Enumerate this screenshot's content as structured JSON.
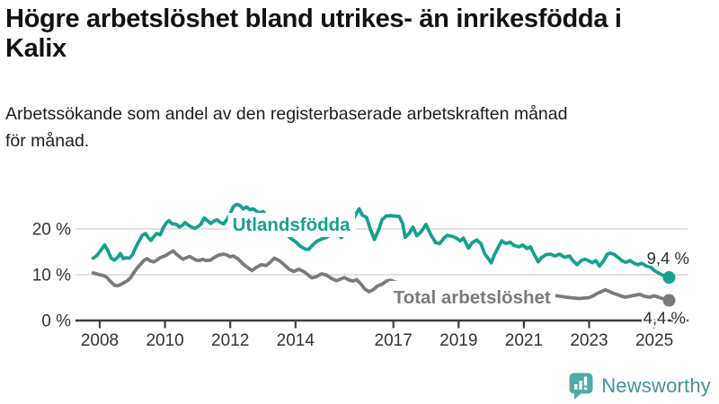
{
  "header": {
    "title_line1": "Högre arbetslöshet bland utrikes- än inrikesfödda i",
    "title_line2": "Kalix",
    "subtitle_line1": "Arbetssökande som andel av den registerbaserade arbetskraften månad",
    "subtitle_line2": "för månad."
  },
  "footer": {
    "brand": "Newsworthy",
    "logo_icon": "speech-bubble-bar-chart-icon",
    "logo_color": "#4FAAA5",
    "brand_color": "#42929C"
  },
  "chart_data": {
    "type": "line",
    "title": "Högre arbetslöshet bland utrikes- än inrikesfödda i Kalix",
    "subtitle": "Arbetssökande som andel av den registerbaserade arbetskraften månad för månad.",
    "grid": true,
    "ylim": [
      0,
      27
    ],
    "xlim": [
      2007.25,
      2026.2
    ],
    "layout": {
      "axis_color": "#3d3d3d",
      "grid_color": "#d8d8d8",
      "tick_text_color": "#333333",
      "legend_position": "inline-on-line"
    },
    "y_ticks": [
      {
        "value": 0,
        "label": "0 %"
      },
      {
        "value": 10,
        "label": "10 %"
      },
      {
        "value": 20,
        "label": "20 %"
      }
    ],
    "x_ticks": [
      {
        "value": 2008,
        "label": "2008"
      },
      {
        "value": 2010,
        "label": "2010"
      },
      {
        "value": 2012,
        "label": "2012"
      },
      {
        "value": 2014,
        "label": "2014"
      },
      {
        "value": 2017,
        "label": "2017"
      },
      {
        "value": 2019,
        "label": "2019"
      },
      {
        "value": 2021,
        "label": "2021"
      },
      {
        "value": 2023,
        "label": "2023"
      },
      {
        "value": 2025,
        "label": "2025"
      }
    ],
    "series": [
      {
        "name": "Total arbetslöshet",
        "color": "#7b7b7b",
        "label": {
          "x_year": 2017.0,
          "y_pct": 3.73,
          "anchor": "start",
          "pad_top": 7,
          "pad_bottom": 6
        },
        "end_label": {
          "text": "4,4 %",
          "x_year": 2025.96,
          "y_pct": -0.7
        },
        "end_value": 4.4,
        "points": [
          [
            2007.8,
            10.4
          ],
          [
            2007.9,
            10.2
          ],
          [
            2008.0,
            10.0
          ],
          [
            2008.12,
            9.8
          ],
          [
            2008.22,
            9.4
          ],
          [
            2008.32,
            8.6
          ],
          [
            2008.45,
            7.7
          ],
          [
            2008.55,
            7.6
          ],
          [
            2008.65,
            7.9
          ],
          [
            2008.75,
            8.3
          ],
          [
            2008.85,
            8.7
          ],
          [
            2008.95,
            9.4
          ],
          [
            2009.05,
            10.5
          ],
          [
            2009.15,
            11.5
          ],
          [
            2009.25,
            12.3
          ],
          [
            2009.35,
            13.1
          ],
          [
            2009.45,
            13.5
          ],
          [
            2009.55,
            13.0
          ],
          [
            2009.65,
            12.8
          ],
          [
            2009.75,
            13.2
          ],
          [
            2009.85,
            13.7
          ],
          [
            2009.95,
            14.0
          ],
          [
            2010.05,
            14.3
          ],
          [
            2010.15,
            14.8
          ],
          [
            2010.25,
            15.2
          ],
          [
            2010.35,
            14.5
          ],
          [
            2010.45,
            13.9
          ],
          [
            2010.55,
            13.4
          ],
          [
            2010.65,
            13.7
          ],
          [
            2010.75,
            14.0
          ],
          [
            2010.85,
            13.6
          ],
          [
            2010.95,
            13.2
          ],
          [
            2011.05,
            13.1
          ],
          [
            2011.15,
            13.4
          ],
          [
            2011.25,
            13.1
          ],
          [
            2011.4,
            13.2
          ],
          [
            2011.5,
            13.7
          ],
          [
            2011.65,
            14.3
          ],
          [
            2011.8,
            14.5
          ],
          [
            2011.9,
            14.3
          ],
          [
            2012.0,
            13.9
          ],
          [
            2012.1,
            14.1
          ],
          [
            2012.25,
            13.4
          ],
          [
            2012.4,
            12.3
          ],
          [
            2012.55,
            11.5
          ],
          [
            2012.67,
            10.9
          ],
          [
            2012.8,
            11.6
          ],
          [
            2012.95,
            12.2
          ],
          [
            2013.1,
            12.0
          ],
          [
            2013.22,
            12.7
          ],
          [
            2013.35,
            13.6
          ],
          [
            2013.5,
            13.1
          ],
          [
            2013.65,
            12.2
          ],
          [
            2013.8,
            11.2
          ],
          [
            2013.95,
            10.7
          ],
          [
            2014.1,
            11.2
          ],
          [
            2014.25,
            10.7
          ],
          [
            2014.38,
            10.0
          ],
          [
            2014.5,
            9.3
          ],
          [
            2014.65,
            9.6
          ],
          [
            2014.8,
            10.2
          ],
          [
            2014.95,
            9.9
          ],
          [
            2015.1,
            9.2
          ],
          [
            2015.25,
            8.7
          ],
          [
            2015.4,
            9.1
          ],
          [
            2015.5,
            9.4
          ],
          [
            2015.62,
            8.9
          ],
          [
            2015.75,
            8.6
          ],
          [
            2015.88,
            8.9
          ],
          [
            2016.0,
            8.0
          ],
          [
            2016.12,
            6.9
          ],
          [
            2016.25,
            6.3
          ],
          [
            2016.38,
            6.7
          ],
          [
            2016.5,
            7.5
          ],
          [
            2016.65,
            7.9
          ],
          [
            2016.78,
            8.6
          ],
          [
            2016.92,
            8.8
          ],
          [
            2017.05,
            8.4
          ],
          [
            2017.3,
            8.0
          ],
          [
            2017.6,
            7.6
          ],
          [
            2018.0,
            7.2
          ],
          [
            2018.5,
            6.9
          ],
          [
            2019.0,
            6.6
          ],
          [
            2019.5,
            6.3
          ],
          [
            2020.0,
            6.6
          ],
          [
            2020.3,
            7.4
          ],
          [
            2020.6,
            7.0
          ],
          [
            2021.0,
            6.4
          ],
          [
            2021.5,
            5.9
          ],
          [
            2022.0,
            5.4
          ],
          [
            2022.4,
            5.0
          ],
          [
            2022.7,
            4.8
          ],
          [
            2022.85,
            4.9
          ],
          [
            2023.0,
            5.0
          ],
          [
            2023.1,
            5.3
          ],
          [
            2023.25,
            5.9
          ],
          [
            2023.4,
            6.4
          ],
          [
            2023.5,
            6.7
          ],
          [
            2023.6,
            6.4
          ],
          [
            2023.72,
            6.0
          ],
          [
            2023.85,
            5.7
          ],
          [
            2024.0,
            5.3
          ],
          [
            2024.12,
            5.1
          ],
          [
            2024.25,
            5.3
          ],
          [
            2024.4,
            5.5
          ],
          [
            2024.55,
            5.7
          ],
          [
            2024.7,
            5.3
          ],
          [
            2024.85,
            5.1
          ],
          [
            2025.0,
            5.4
          ],
          [
            2025.12,
            5.1
          ],
          [
            2025.25,
            4.8
          ],
          [
            2025.45,
            4.4
          ]
        ]
      },
      {
        "name": "Utlandsfödda",
        "color": "#17A08F",
        "label": {
          "x_year": 2013.87,
          "y_pct": 19.6,
          "anchor": "middle",
          "pad_top": 2,
          "pad_bottom": 2
        },
        "end_label": {
          "text": "9,4 %",
          "x_year": 2026.07,
          "y_pct": 12.35
        },
        "end_value": 9.4,
        "points": [
          [
            2007.8,
            13.6
          ],
          [
            2007.9,
            14.1
          ],
          [
            2008.0,
            15.0
          ],
          [
            2008.15,
            16.5
          ],
          [
            2008.25,
            15.2
          ],
          [
            2008.35,
            13.6
          ],
          [
            2008.45,
            13.2
          ],
          [
            2008.55,
            13.8
          ],
          [
            2008.63,
            14.6
          ],
          [
            2008.72,
            13.5
          ],
          [
            2008.8,
            13.7
          ],
          [
            2008.9,
            13.6
          ],
          [
            2009.0,
            14.3
          ],
          [
            2009.1,
            15.9
          ],
          [
            2009.2,
            17.3
          ],
          [
            2009.3,
            18.6
          ],
          [
            2009.4,
            19.0
          ],
          [
            2009.5,
            18.0
          ],
          [
            2009.57,
            17.5
          ],
          [
            2009.65,
            18.3
          ],
          [
            2009.75,
            19.0
          ],
          [
            2009.85,
            18.7
          ],
          [
            2009.95,
            20.3
          ],
          [
            2010.05,
            21.4
          ],
          [
            2010.12,
            21.8
          ],
          [
            2010.22,
            21.1
          ],
          [
            2010.35,
            21.0
          ],
          [
            2010.45,
            20.4
          ],
          [
            2010.55,
            20.9
          ],
          [
            2010.62,
            21.4
          ],
          [
            2010.72,
            20.8
          ],
          [
            2010.82,
            20.4
          ],
          [
            2010.92,
            20.1
          ],
          [
            2011.0,
            20.5
          ],
          [
            2011.1,
            21.0
          ],
          [
            2011.2,
            22.4
          ],
          [
            2011.3,
            21.8
          ],
          [
            2011.4,
            21.2
          ],
          [
            2011.5,
            21.7
          ],
          [
            2011.6,
            22.0
          ],
          [
            2011.7,
            21.4
          ],
          [
            2011.8,
            21.1
          ],
          [
            2011.9,
            22.1
          ],
          [
            2012.0,
            23.4
          ],
          [
            2012.1,
            24.9
          ],
          [
            2012.2,
            25.4
          ],
          [
            2012.3,
            25.1
          ],
          [
            2012.4,
            24.4
          ],
          [
            2012.5,
            24.8
          ],
          [
            2012.6,
            24.2
          ],
          [
            2012.7,
            24.4
          ],
          [
            2012.8,
            23.9
          ],
          [
            2012.9,
            23.5
          ],
          [
            2013.0,
            23.8
          ],
          [
            2013.1,
            23.1
          ],
          [
            2013.25,
            22.2
          ],
          [
            2013.4,
            21.0
          ],
          [
            2013.55,
            20.0
          ],
          [
            2013.7,
            19.0
          ],
          [
            2013.85,
            18.0
          ],
          [
            2014.0,
            17.2
          ],
          [
            2014.15,
            16.2
          ],
          [
            2014.3,
            15.6
          ],
          [
            2014.4,
            15.5
          ],
          [
            2014.5,
            16.3
          ],
          [
            2014.65,
            17.3
          ],
          [
            2014.8,
            17.8
          ],
          [
            2014.95,
            18.2
          ],
          [
            2015.1,
            18.8
          ],
          [
            2015.25,
            19.4
          ],
          [
            2015.4,
            18.1
          ],
          [
            2015.55,
            19.3
          ],
          [
            2015.7,
            21.0
          ],
          [
            2015.85,
            23.2
          ],
          [
            2015.95,
            24.4
          ],
          [
            2016.05,
            23.0
          ],
          [
            2016.18,
            22.5
          ],
          [
            2016.3,
            19.8
          ],
          [
            2016.42,
            17.7
          ],
          [
            2016.55,
            19.8
          ],
          [
            2016.65,
            22.0
          ],
          [
            2016.78,
            22.8
          ],
          [
            2016.9,
            22.9
          ],
          [
            2017.05,
            22.8
          ],
          [
            2017.18,
            22.7
          ],
          [
            2017.28,
            21.2
          ],
          [
            2017.36,
            18.2
          ],
          [
            2017.48,
            19.0
          ],
          [
            2017.6,
            20.4
          ],
          [
            2017.72,
            18.5
          ],
          [
            2017.85,
            19.4
          ],
          [
            2018.0,
            21.0
          ],
          [
            2018.15,
            18.7
          ],
          [
            2018.3,
            17.0
          ],
          [
            2018.42,
            16.8
          ],
          [
            2018.55,
            18.0
          ],
          [
            2018.65,
            18.6
          ],
          [
            2018.8,
            18.4
          ],
          [
            2018.95,
            17.9
          ],
          [
            2019.05,
            17.4
          ],
          [
            2019.15,
            18.0
          ],
          [
            2019.3,
            15.8
          ],
          [
            2019.42,
            17.0
          ],
          [
            2019.55,
            17.6
          ],
          [
            2019.68,
            16.8
          ],
          [
            2019.8,
            14.6
          ],
          [
            2019.9,
            13.6
          ],
          [
            2020.0,
            12.6
          ],
          [
            2020.1,
            14.4
          ],
          [
            2020.2,
            15.8
          ],
          [
            2020.32,
            17.4
          ],
          [
            2020.45,
            16.8
          ],
          [
            2020.58,
            17.1
          ],
          [
            2020.7,
            16.4
          ],
          [
            2020.85,
            16.1
          ],
          [
            2020.97,
            16.5
          ],
          [
            2021.1,
            15.7
          ],
          [
            2021.2,
            16.1
          ],
          [
            2021.32,
            14.4
          ],
          [
            2021.44,
            12.8
          ],
          [
            2021.55,
            13.8
          ],
          [
            2021.68,
            14.4
          ],
          [
            2021.82,
            14.5
          ],
          [
            2021.95,
            14.1
          ],
          [
            2022.1,
            14.5
          ],
          [
            2022.25,
            13.8
          ],
          [
            2022.4,
            14.1
          ],
          [
            2022.5,
            13.1
          ],
          [
            2022.63,
            12.2
          ],
          [
            2022.76,
            13.1
          ],
          [
            2022.88,
            13.4
          ],
          [
            2023.0,
            13.0
          ],
          [
            2023.1,
            12.6
          ],
          [
            2023.2,
            13.1
          ],
          [
            2023.32,
            11.9
          ],
          [
            2023.45,
            13.1
          ],
          [
            2023.56,
            14.5
          ],
          [
            2023.65,
            14.7
          ],
          [
            2023.78,
            14.4
          ],
          [
            2023.9,
            13.7
          ],
          [
            2024.0,
            13.1
          ],
          [
            2024.12,
            12.7
          ],
          [
            2024.25,
            13.1
          ],
          [
            2024.38,
            12.5
          ],
          [
            2024.5,
            12.2
          ],
          [
            2024.62,
            12.5
          ],
          [
            2024.75,
            11.9
          ],
          [
            2024.88,
            11.7
          ],
          [
            2025.0,
            10.9
          ],
          [
            2025.15,
            10.3
          ],
          [
            2025.3,
            9.7
          ],
          [
            2025.45,
            9.4
          ]
        ]
      }
    ]
  }
}
